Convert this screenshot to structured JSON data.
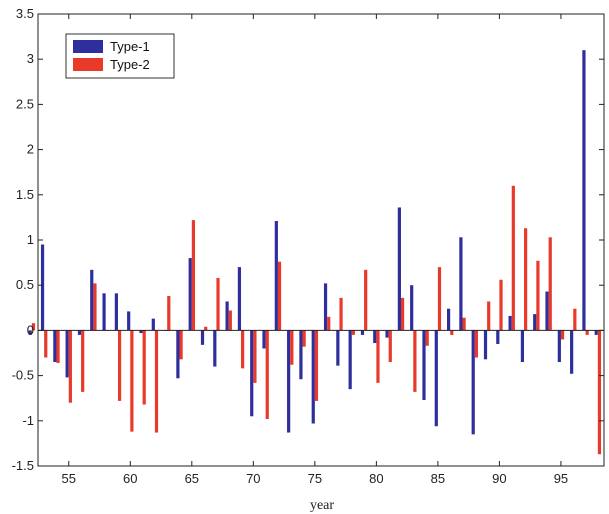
{
  "chart_data": {
    "type": "bar",
    "xlabel": "year",
    "ylabel": "",
    "title": "",
    "xlim": [
      52.5,
      98.5
    ],
    "ylim": [
      -1.5,
      3.5
    ],
    "x_ticks": [
      55,
      60,
      65,
      70,
      75,
      80,
      85,
      90,
      95
    ],
    "y_ticks": [
      -1.5,
      -1,
      -0.5,
      0,
      0.5,
      1,
      1.5,
      2,
      2.5,
      3,
      3.5
    ],
    "x_tick_labels": [
      "55",
      "60",
      "65",
      "70",
      "75",
      "80",
      "85",
      "90",
      "95"
    ],
    "y_tick_labels": [
      "-1.5",
      "-1",
      "-0.5",
      "0",
      "0.5",
      "1",
      "1.5",
      "2",
      "2.5",
      "3",
      "3.5"
    ],
    "legend_position": "top-left",
    "grid": false,
    "categories": [
      52,
      53,
      54,
      55,
      56,
      57,
      58,
      59,
      60,
      61,
      62,
      63,
      64,
      65,
      66,
      67,
      68,
      69,
      70,
      71,
      72,
      73,
      74,
      75,
      76,
      77,
      78,
      79,
      80,
      81,
      82,
      83,
      84,
      85,
      86,
      87,
      88,
      89,
      90,
      91,
      92,
      93,
      94,
      95,
      96,
      97,
      98
    ],
    "series": [
      {
        "name": "Type-1",
        "color": "#2e2e9c",
        "values": [
          -0.05,
          0.95,
          -0.35,
          -0.52,
          -0.05,
          0.67,
          0.41,
          0.41,
          0.21,
          -0.03,
          0.13,
          0.0,
          -0.53,
          0.8,
          -0.16,
          -0.4,
          0.32,
          0.7,
          -0.95,
          -0.2,
          1.21,
          -1.13,
          -0.54,
          -1.03,
          0.52,
          -0.39,
          -0.65,
          -0.05,
          -0.14,
          -0.08,
          1.36,
          0.5,
          -0.77,
          -1.06,
          0.24,
          1.03,
          -1.15,
          -0.32,
          -0.15,
          0.16,
          -0.35,
          0.18,
          0.43,
          -0.35,
          -0.48,
          3.1,
          -0.05
        ]
      },
      {
        "name": "Type-2",
        "color": "#e8392a",
        "values": [
          0.08,
          -0.3,
          -0.36,
          -0.8,
          -0.68,
          0.52,
          0.0,
          -0.78,
          -1.12,
          -0.82,
          -1.13,
          0.38,
          -0.32,
          1.22,
          0.04,
          0.58,
          0.22,
          -0.42,
          -0.58,
          -0.98,
          0.76,
          -0.38,
          -0.18,
          -0.78,
          0.15,
          0.36,
          -0.05,
          0.67,
          -0.58,
          -0.35,
          0.36,
          -0.68,
          -0.17,
          0.7,
          -0.05,
          0.14,
          -0.3,
          0.32,
          0.56,
          1.6,
          1.13,
          0.77,
          1.03,
          -0.1,
          0.24,
          -0.05,
          -1.37
        ]
      },
      {
        "name": "",
        "color": "",
        "values": [
          0,
          0,
          0,
          0,
          0,
          0,
          0,
          0,
          0,
          0,
          0,
          0,
          0,
          0,
          0,
          0,
          0,
          0,
          0,
          0,
          0,
          0,
          0,
          0,
          0,
          0,
          0,
          0,
          0,
          0,
          0,
          0,
          0,
          0,
          0,
          0,
          0,
          0,
          0,
          0,
          0,
          0,
          0,
          0,
          0,
          0,
          0
        ]
      }
    ]
  },
  "legend": {
    "items": [
      {
        "label": "Type-1",
        "color": "#2e2e9c"
      },
      {
        "label": "Type-2",
        "color": "#e8392a"
      }
    ]
  }
}
